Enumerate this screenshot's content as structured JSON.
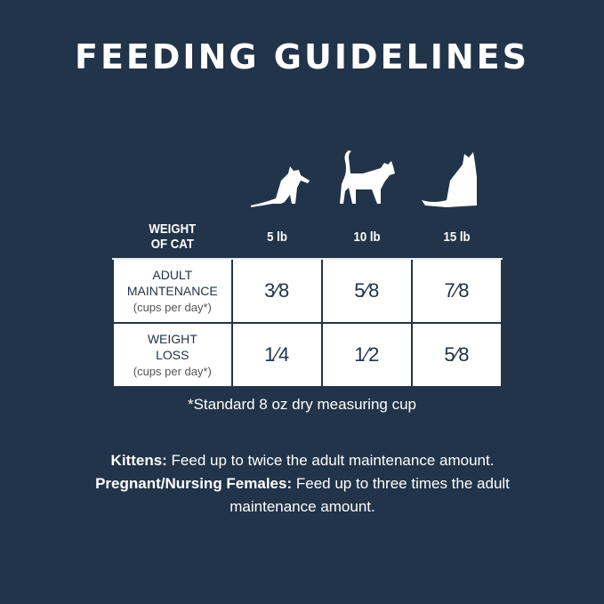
{
  "title": "FEEDING GUIDELINES",
  "icons": [
    "kitten-silhouette-icon",
    "walking-cat-silhouette-icon",
    "sitting-cat-silhouette-icon"
  ],
  "table": {
    "header": {
      "label_line1": "WEIGHT",
      "label_line2": "OF CAT",
      "columns": [
        "5 lb",
        "10 lb",
        "15 lb"
      ]
    },
    "rows": [
      {
        "label_line1": "ADULT",
        "label_line2": "MAINTENANCE",
        "unit": "(cups per day*)",
        "values": [
          "3⁄8",
          "5⁄8",
          "7⁄8"
        ]
      },
      {
        "label_line1": "WEIGHT",
        "label_line2": "LOSS",
        "unit": "(cups per day*)",
        "values": [
          "1⁄4",
          "1⁄2",
          "5⁄8"
        ]
      }
    ]
  },
  "footnote": "*Standard 8 oz dry measuring cup",
  "notes": [
    {
      "label": "Kittens:",
      "text": " Feed up to twice the adult maintenance amount."
    },
    {
      "label": "Pregnant/Nursing Females:",
      "text": " Feed up to three times the adult maintenance amount."
    }
  ],
  "colors": {
    "background": "#223449",
    "text": "#ffffff",
    "cell_background": "#ffffff"
  }
}
